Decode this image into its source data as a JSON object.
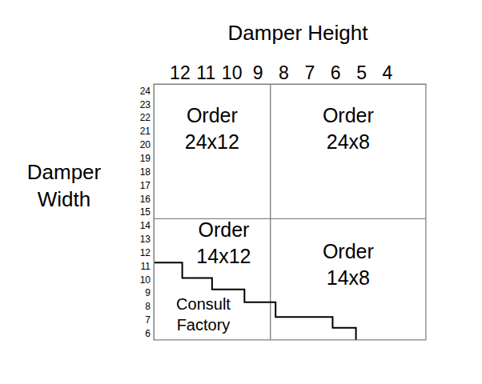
{
  "chart_data": {
    "type": "region_map",
    "x_label": "Damper Height",
    "y_label": "Damper Width",
    "xlim": [
      13,
      2.5
    ],
    "ylim": [
      5.5,
      24.5
    ],
    "xticks": [
      12,
      11,
      10,
      9,
      8,
      7,
      6,
      5,
      4
    ],
    "yticks": [
      24,
      23,
      22,
      21,
      20,
      19,
      18,
      17,
      16,
      15,
      14,
      13,
      12,
      11,
      10,
      9,
      8,
      7,
      6
    ],
    "regions": [
      {
        "label": [
          "Order",
          "24x12"
        ],
        "height_range": [
          13,
          8.5
        ],
        "width_range": [
          14.5,
          24.5
        ]
      },
      {
        "label": [
          "Order",
          "24x8"
        ],
        "height_range": [
          8.5,
          2.5
        ],
        "width_range": [
          14.5,
          24.5
        ]
      },
      {
        "label": [
          "Order",
          "14x12"
        ],
        "height_range": [
          13,
          8.5
        ],
        "width_range": [
          5.5,
          14.5
        ]
      },
      {
        "label": [
          "Order",
          "14x8"
        ],
        "height_range": [
          8.5,
          2.5
        ],
        "width_range": [
          5.5,
          14.5
        ]
      }
    ],
    "boundary": {
      "label": [
        "Consult",
        "Factory"
      ],
      "x": [
        13,
        13,
        11.9,
        11.9,
        10.75,
        10.75,
        9.5,
        9.5,
        8.3,
        8.3,
        6.1,
        6.1,
        5.2,
        5.2
      ],
      "y": [
        5.5,
        11.25,
        11.25,
        10.1,
        10.1,
        9.25,
        9.25,
        8.3,
        8.3,
        7.2,
        7.2,
        6.4,
        6.4,
        5.5
      ]
    }
  }
}
